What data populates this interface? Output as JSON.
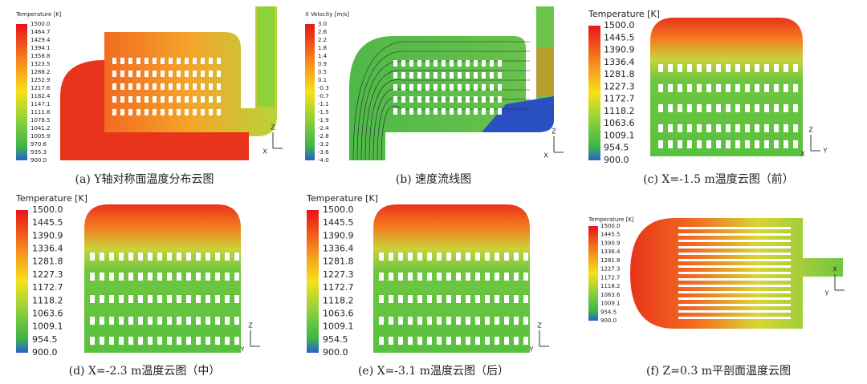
{
  "panels": [
    {
      "legend_title": "Temperature [K]",
      "legend_labels": [
        "1500.0",
        "1464.7",
        "1429.4",
        "1394.1",
        "1358.8",
        "1323.5",
        "1288.2",
        "1252.9",
        "1217.6",
        "1182.4",
        "1147.1",
        "1111.8",
        "1076.5",
        "1041.2",
        "1005.9",
        "970.6",
        "935.3",
        "900.0"
      ],
      "axis_labels": [
        "Z",
        "X"
      ],
      "caption": "(a) Y轴对称面温度分布云图"
    },
    {
      "legend_title": "X Velocity [m/s]",
      "legend_labels": [
        "3.0",
        "2.6",
        "2.2",
        "1.8",
        "1.4",
        "0.9",
        "0.5",
        "0.1",
        "-0.3",
        "-0.7",
        "-1.1",
        "-1.5",
        "-1.9",
        "-2.4",
        "-2.8",
        "-3.2",
        "-3.6",
        "-4.0"
      ],
      "axis_labels": [
        "Z",
        "X"
      ],
      "caption": "(b) 速度流线图"
    },
    {
      "legend_title": "Temperature [K]",
      "legend_labels": [
        "1500.0",
        "1445.5",
        "1390.9",
        "1336.4",
        "1281.8",
        "1227.3",
        "1172.7",
        "1118.2",
        "1063.6",
        "1009.1",
        "954.5",
        "900.0"
      ],
      "axis_labels": [
        "Z",
        "X",
        "Y"
      ],
      "caption": "(c) X=-1.5 m温度云图（前）"
    },
    {
      "legend_title": "Temperature [K]",
      "legend_labels": [
        "1500.0",
        "1445.5",
        "1390.9",
        "1336.4",
        "1281.8",
        "1227.3",
        "1172.7",
        "1118.2",
        "1063.6",
        "1009.1",
        "954.5",
        "900.0"
      ],
      "axis_labels": [
        "Z",
        "Y"
      ],
      "caption": "(d) X=-2.3 m温度云图（中）"
    },
    {
      "legend_title": "Temperature [K]",
      "legend_labels": [
        "1500.0",
        "1445.5",
        "1390.9",
        "1336.4",
        "1281.8",
        "1227.3",
        "1172.7",
        "1118.2",
        "1063.6",
        "1009.1",
        "954.5",
        "900.0"
      ],
      "axis_labels": [
        "Z",
        "Y"
      ],
      "caption": "(e) X=-3.1 m温度云图（后）"
    },
    {
      "legend_title": "Temperature [K]",
      "legend_labels": [
        "1500.0",
        "1445.5",
        "1390.9",
        "1336.4",
        "1281.8",
        "1227.3",
        "1172.7",
        "1118.2",
        "1063.6",
        "1009.1",
        "954.5",
        "900.0"
      ],
      "axis_labels": [
        "X",
        "Y"
      ],
      "caption": "(f) Z=0.3 m平剖面温度云图"
    }
  ]
}
